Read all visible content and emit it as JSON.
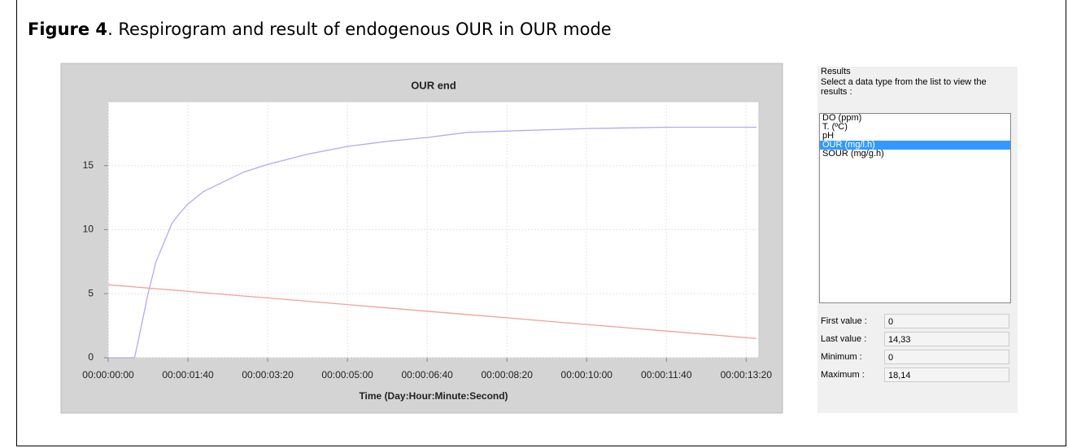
{
  "caption": {
    "label": "Figure 4",
    "text": ". Respirogram and result of endogenous OUR in OUR mode"
  },
  "chart_data": {
    "type": "line",
    "title": "OUR end",
    "x_label": "Time (Day:Hour:Minute:Second)",
    "x": [
      0,
      20,
      33,
      40,
      50,
      60,
      70,
      80,
      90,
      100,
      120,
      140,
      170,
      200,
      250,
      300,
      350,
      400,
      450,
      500,
      550,
      600,
      650,
      700,
      750,
      813
    ],
    "series": [
      {
        "color": "#b9a6f0",
        "values": [
          0,
          0,
          0,
          2,
          5,
          7.5,
          9,
          10.5,
          11.3,
          12,
          13,
          13.6,
          14.5,
          15.1,
          15.9,
          16.5,
          16.9,
          17.2,
          17.6,
          17.7,
          17.8,
          17.9,
          17.95,
          18,
          18,
          18
        ]
      },
      {
        "color": "#f2a09a",
        "values": [
          5.7,
          5.6,
          5.53,
          5.49,
          5.44,
          5.39,
          5.34,
          5.29,
          5.24,
          5.18,
          5.08,
          4.98,
          4.82,
          4.67,
          4.41,
          4.15,
          3.89,
          3.63,
          3.38,
          3.12,
          2.86,
          2.6,
          2.34,
          2.08,
          1.83,
          1.5
        ]
      }
    ],
    "xlim": [
      0,
      816
    ],
    "ylim": [
      0,
      20
    ],
    "yticks": [
      0,
      5,
      10,
      15
    ],
    "xticks": [
      {
        "value": 0,
        "label": "00:00:00:00"
      },
      {
        "value": 100,
        "label": "00:00:01:40"
      },
      {
        "value": 200,
        "label": "00:00:03:20"
      },
      {
        "value": 300,
        "label": "00:00:05:00"
      },
      {
        "value": 400,
        "label": "00:00:06:40"
      },
      {
        "value": 500,
        "label": "00:00:08:20"
      },
      {
        "value": 600,
        "label": "00:00:10:00"
      },
      {
        "value": 700,
        "label": "00:00:11:40"
      },
      {
        "value": 800,
        "label": "00:00:13:20"
      }
    ],
    "grid": true
  },
  "results_panel": {
    "group_label": "Results",
    "instruction": "Select a data type from the list to view the results :",
    "items": [
      "DO (ppm)",
      "T. (ºC)",
      "pH",
      "OUR (mg/l.h)",
      "SOUR (mg/g.h)"
    ],
    "selected": 3,
    "fields": [
      {
        "label": "First value :",
        "value": "0"
      },
      {
        "label": "Last value :",
        "value": "14,33"
      },
      {
        "label": "Minimum :",
        "value": "0"
      },
      {
        "label": "Maximum :",
        "value": "18,14"
      }
    ]
  }
}
